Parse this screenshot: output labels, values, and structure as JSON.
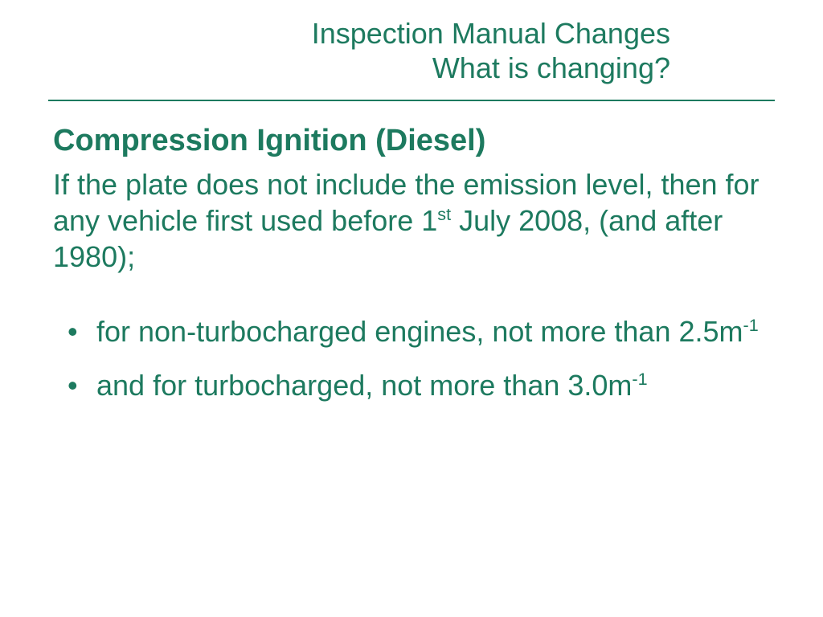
{
  "colors": {
    "text": "#1d7a5f",
    "divider": "#1d7a5f",
    "background": "#ffffff"
  },
  "typography": {
    "title_fontsize": 36,
    "heading_fontsize": 38,
    "body_fontsize": 36,
    "title_weight": 400,
    "heading_weight": 700,
    "body_weight": 400
  },
  "header": {
    "line1": "Inspection Manual Changes",
    "line2": "What is changing?"
  },
  "section": {
    "heading": "Compression Ignition (Diesel)",
    "body_pre": "If the plate does not include the emission level, then for any vehicle first used before 1",
    "body_sup": "st",
    "body_post": " July 2008, (and after 1980);"
  },
  "bullets": [
    {
      "pre": "for non-turbocharged engines, not more than 2.5m",
      "sup": "-1",
      "post": ""
    },
    {
      "pre": "and for turbocharged, not more than 3.0m",
      "sup": "-1",
      "post": ""
    }
  ]
}
